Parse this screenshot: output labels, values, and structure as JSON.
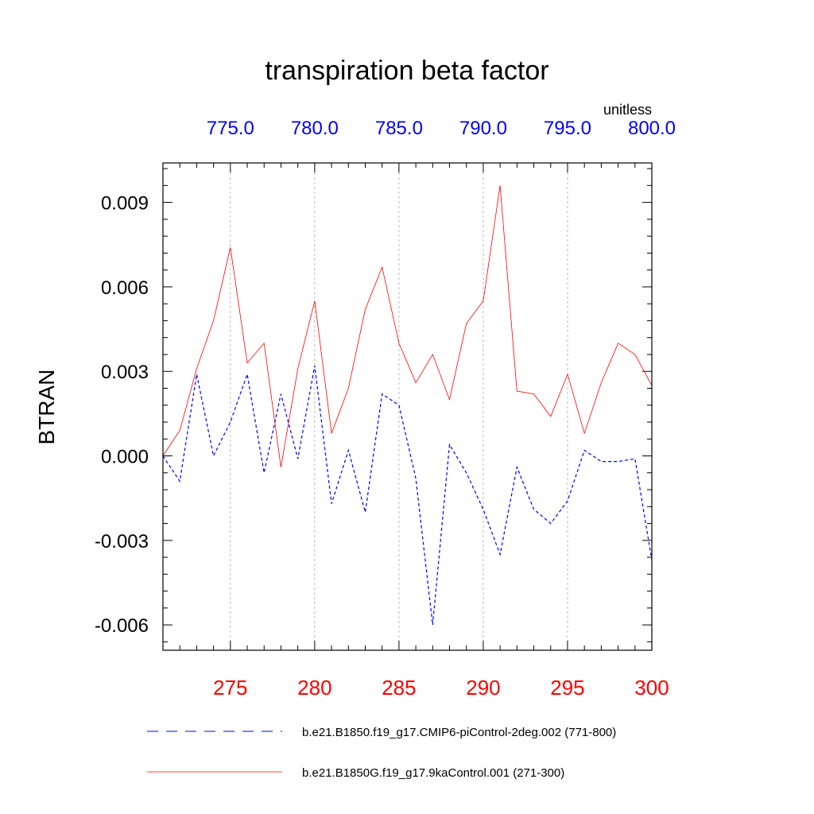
{
  "chart_data": {
    "type": "line",
    "title": "transpiration beta factor",
    "ylabel": "BTRAN",
    "units": "unitless",
    "ylim": [
      -0.0069,
      0.0104
    ],
    "y_ticks": [
      -0.006,
      -0.003,
      0.0,
      0.003,
      0.006,
      0.009
    ],
    "y_tick_labels": [
      "-0.006",
      "-0.003",
      "0.000",
      "0.003",
      "0.006",
      "0.009"
    ],
    "bottom_axis": {
      "xlim": [
        271,
        300
      ],
      "ticks": [
        275,
        280,
        285,
        290,
        295,
        300
      ],
      "tick_labels": [
        "275",
        "280",
        "285",
        "290",
        "295",
        "300"
      ],
      "color": "#ff0000"
    },
    "top_axis": {
      "xlim": [
        771,
        800
      ],
      "ticks": [
        775,
        780,
        785,
        790,
        795,
        800
      ],
      "tick_labels": [
        "775.0",
        "780.0",
        "785.0",
        "790.0",
        "795.0",
        "800.0"
      ],
      "color": "#0000ff"
    },
    "grid": "vertical dashed at major ticks",
    "series": [
      {
        "name": "b.e21.B1850.f19_g17.CMIP6-piControl-2deg.002 (771-800)",
        "style": "dashed",
        "color": "#0000ff",
        "x": [
          771,
          772,
          773,
          774,
          775,
          776,
          777,
          778,
          779,
          780,
          781,
          782,
          783,
          784,
          785,
          786,
          787,
          788,
          789,
          790,
          791,
          792,
          793,
          794,
          795,
          796,
          797,
          798,
          799,
          800
        ],
        "values": [
          0.0,
          -0.0009,
          0.0029,
          0.0,
          0.0012,
          0.0029,
          -0.0006,
          0.0022,
          -0.0001,
          0.0032,
          -0.0017,
          0.0002,
          -0.002,
          0.0022,
          0.0018,
          -0.0008,
          -0.006,
          0.0004,
          -0.0006,
          -0.0019,
          -0.0035,
          -0.0004,
          -0.0019,
          -0.0024,
          -0.0016,
          0.0002,
          -0.0002,
          -0.0002,
          -0.0001,
          -0.0037
        ]
      },
      {
        "name": "b.e21.B1850G.f19_g17.9kaControl.001 (271-300)",
        "style": "solid",
        "color": "#ff0000",
        "x": [
          271,
          272,
          273,
          274,
          275,
          276,
          277,
          278,
          279,
          280,
          281,
          282,
          283,
          284,
          285,
          286,
          287,
          288,
          289,
          290,
          291,
          292,
          293,
          294,
          295,
          296,
          297,
          298,
          299,
          300
        ],
        "values": [
          0.0,
          0.0009,
          0.0031,
          0.0048,
          0.0074,
          0.0033,
          0.004,
          -0.0004,
          0.0031,
          0.0055,
          0.0008,
          0.0024,
          0.0052,
          0.0067,
          0.004,
          0.0026,
          0.0036,
          0.002,
          0.0047,
          0.0055,
          0.0096,
          0.0023,
          0.0022,
          0.0014,
          0.0029,
          0.0008,
          0.0026,
          0.004,
          0.0036,
          0.0025
        ]
      }
    ]
  }
}
